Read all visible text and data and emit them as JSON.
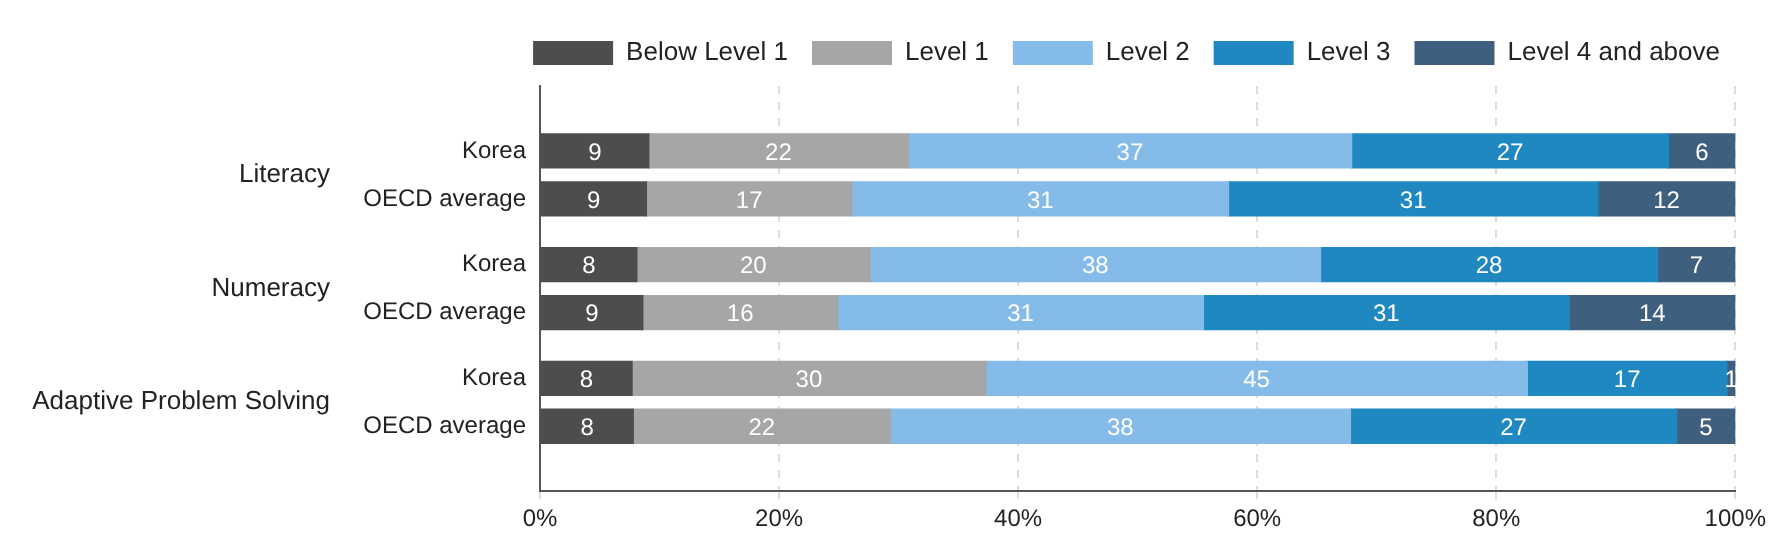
{
  "chart_data": {
    "type": "bar",
    "orientation": "horizontal",
    "stacked": true,
    "categories": [
      "Korea",
      "OECD average",
      "Korea",
      "OECD average",
      "Korea",
      "OECD average"
    ],
    "annotations": [
      "Literacy",
      "Numeracy",
      "Adaptive Problem Solving"
    ],
    "series": [
      {
        "name": "Below Level 1",
        "color": "#4d4d4d",
        "values": [
          9.1,
          8.9,
          8.1,
          8.6,
          7.7,
          7.8
        ],
        "value_labels": [
          "9",
          "9",
          "8",
          "9",
          "8",
          "8"
        ]
      },
      {
        "name": "Level 1",
        "color": "#a6a6a6",
        "values": [
          21.7,
          17.2,
          19.5,
          16.3,
          29.6,
          21.5
        ],
        "value_labels": [
          "22",
          "17",
          "20",
          "16",
          "30",
          "22"
        ]
      },
      {
        "name": "Level 2",
        "color": "#85bbe8",
        "values": [
          37.1,
          31.5,
          37.7,
          30.6,
          45.3,
          38.5
        ],
        "value_labels": [
          "37",
          "31",
          "38",
          "31",
          "45",
          "38"
        ]
      },
      {
        "name": "Level 3",
        "color": "#1f88c0",
        "values": [
          26.5,
          30.9,
          28.2,
          30.6,
          16.7,
          27.3
        ],
        "value_labels": [
          "27",
          "31",
          "28",
          "31",
          "17",
          "27"
        ]
      },
      {
        "name": "Level 4 and above",
        "color": "#3f5f7f",
        "values": [
          5.6,
          11.5,
          6.5,
          13.9,
          0.7,
          4.9
        ],
        "value_labels": [
          "6",
          "12",
          "7",
          "14",
          "1",
          "5"
        ]
      }
    ],
    "xlim": [
      0,
      100
    ],
    "xticks": [
      {
        "value": 0,
        "label": "0%"
      },
      {
        "value": 20,
        "label": "20%"
      },
      {
        "value": 40,
        "label": "40%"
      },
      {
        "value": 60,
        "label": "60%"
      },
      {
        "value": 80,
        "label": "80%"
      },
      {
        "value": 100,
        "label": "100%"
      }
    ],
    "grid": "x",
    "legend": "top"
  }
}
